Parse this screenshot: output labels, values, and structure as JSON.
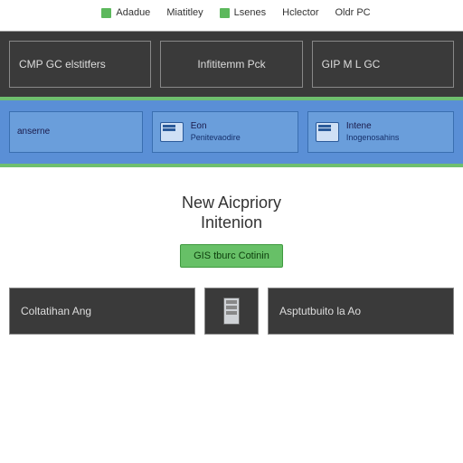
{
  "legend": {
    "items": [
      {
        "label": "Adadue",
        "swatch": "green"
      },
      {
        "label": "Miatitley",
        "swatch": null
      },
      {
        "label": "Lsenes",
        "swatch": "green"
      },
      {
        "label": "Hclector",
        "swatch": null
      },
      {
        "label": "Oldr PC",
        "swatch": null
      }
    ]
  },
  "layers": {
    "top": [
      {
        "label": "CMP GC elstitfers"
      },
      {
        "label": "Infititemm Pck"
      },
      {
        "label": "GIP M L GC"
      }
    ],
    "services": [
      {
        "line1": "Eon",
        "line2": "Penitevaodire"
      },
      {
        "line1": "Intene",
        "line2": "Inogenosahins"
      }
    ],
    "services_leading": "anserne",
    "middle_title_l1": "New Aicpriory",
    "middle_title_l2": "Initenion",
    "middle_button": "GIS tburc Cotinin",
    "bottom_left": "Coltatihan Ang",
    "bottom_right": "Asptutbuito la Ao"
  },
  "colors": {
    "dark": "#3a3a3a",
    "blue": "#6a9edb",
    "green": "#5cb85c"
  }
}
